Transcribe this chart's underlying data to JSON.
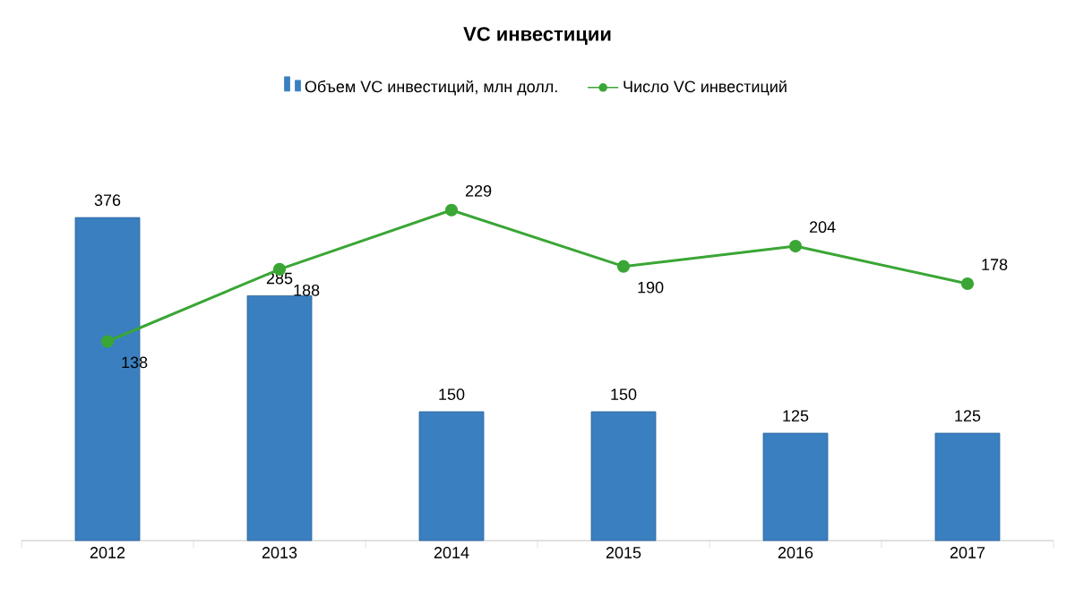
{
  "chart_data": {
    "type": "bar",
    "title": "VC инвестиции",
    "categories": [
      "2012",
      "2013",
      "2014",
      "2015",
      "2016",
      "2017"
    ],
    "series": [
      {
        "name": "Объем VC инвестиций, млн долл.",
        "color": "#3a7fc0",
        "values": [
          376,
          285,
          150,
          150,
          125,
          125
        ]
      },
      {
        "name": "Число VC инвестиций",
        "type": "line",
        "axis": "y2",
        "color": "#3aa635",
        "values": [
          138,
          188,
          229,
          190,
          204,
          178
        ]
      }
    ],
    "tick_labels": "x",
    "data_labels": true,
    "legend": "top",
    "marker": "circle"
  }
}
